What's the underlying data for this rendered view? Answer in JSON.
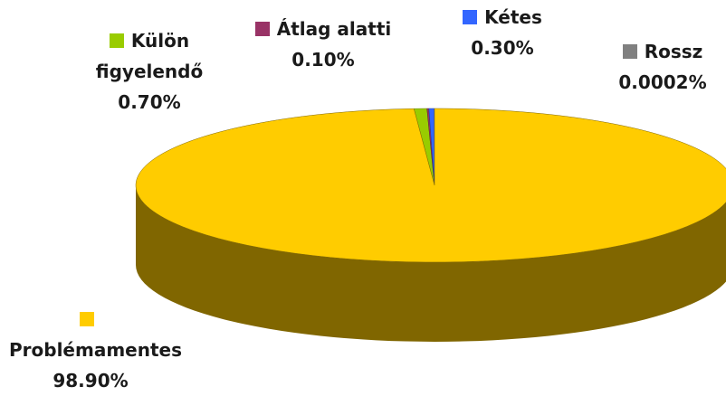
{
  "chart_data": {
    "type": "pie3d",
    "categories": [
      "Külön figyelendő",
      "Átlag alatti",
      "Kétes",
      "Rossz",
      "Problémamentes"
    ],
    "values": [
      0.7,
      0.1,
      0.3,
      0.0002,
      98.9
    ],
    "value_labels": [
      "0.70%",
      "0.10%",
      "0.30%",
      "0.0002%",
      "98.90%"
    ],
    "colors": [
      "#99cc00",
      "#993366",
      "#3366ff",
      "#808080",
      "#ffcc00"
    ],
    "side_colors": [
      "#5c7a00",
      "#5c1f3d",
      "#1f3d99",
      "#4d4d4d",
      "#806600"
    ]
  }
}
